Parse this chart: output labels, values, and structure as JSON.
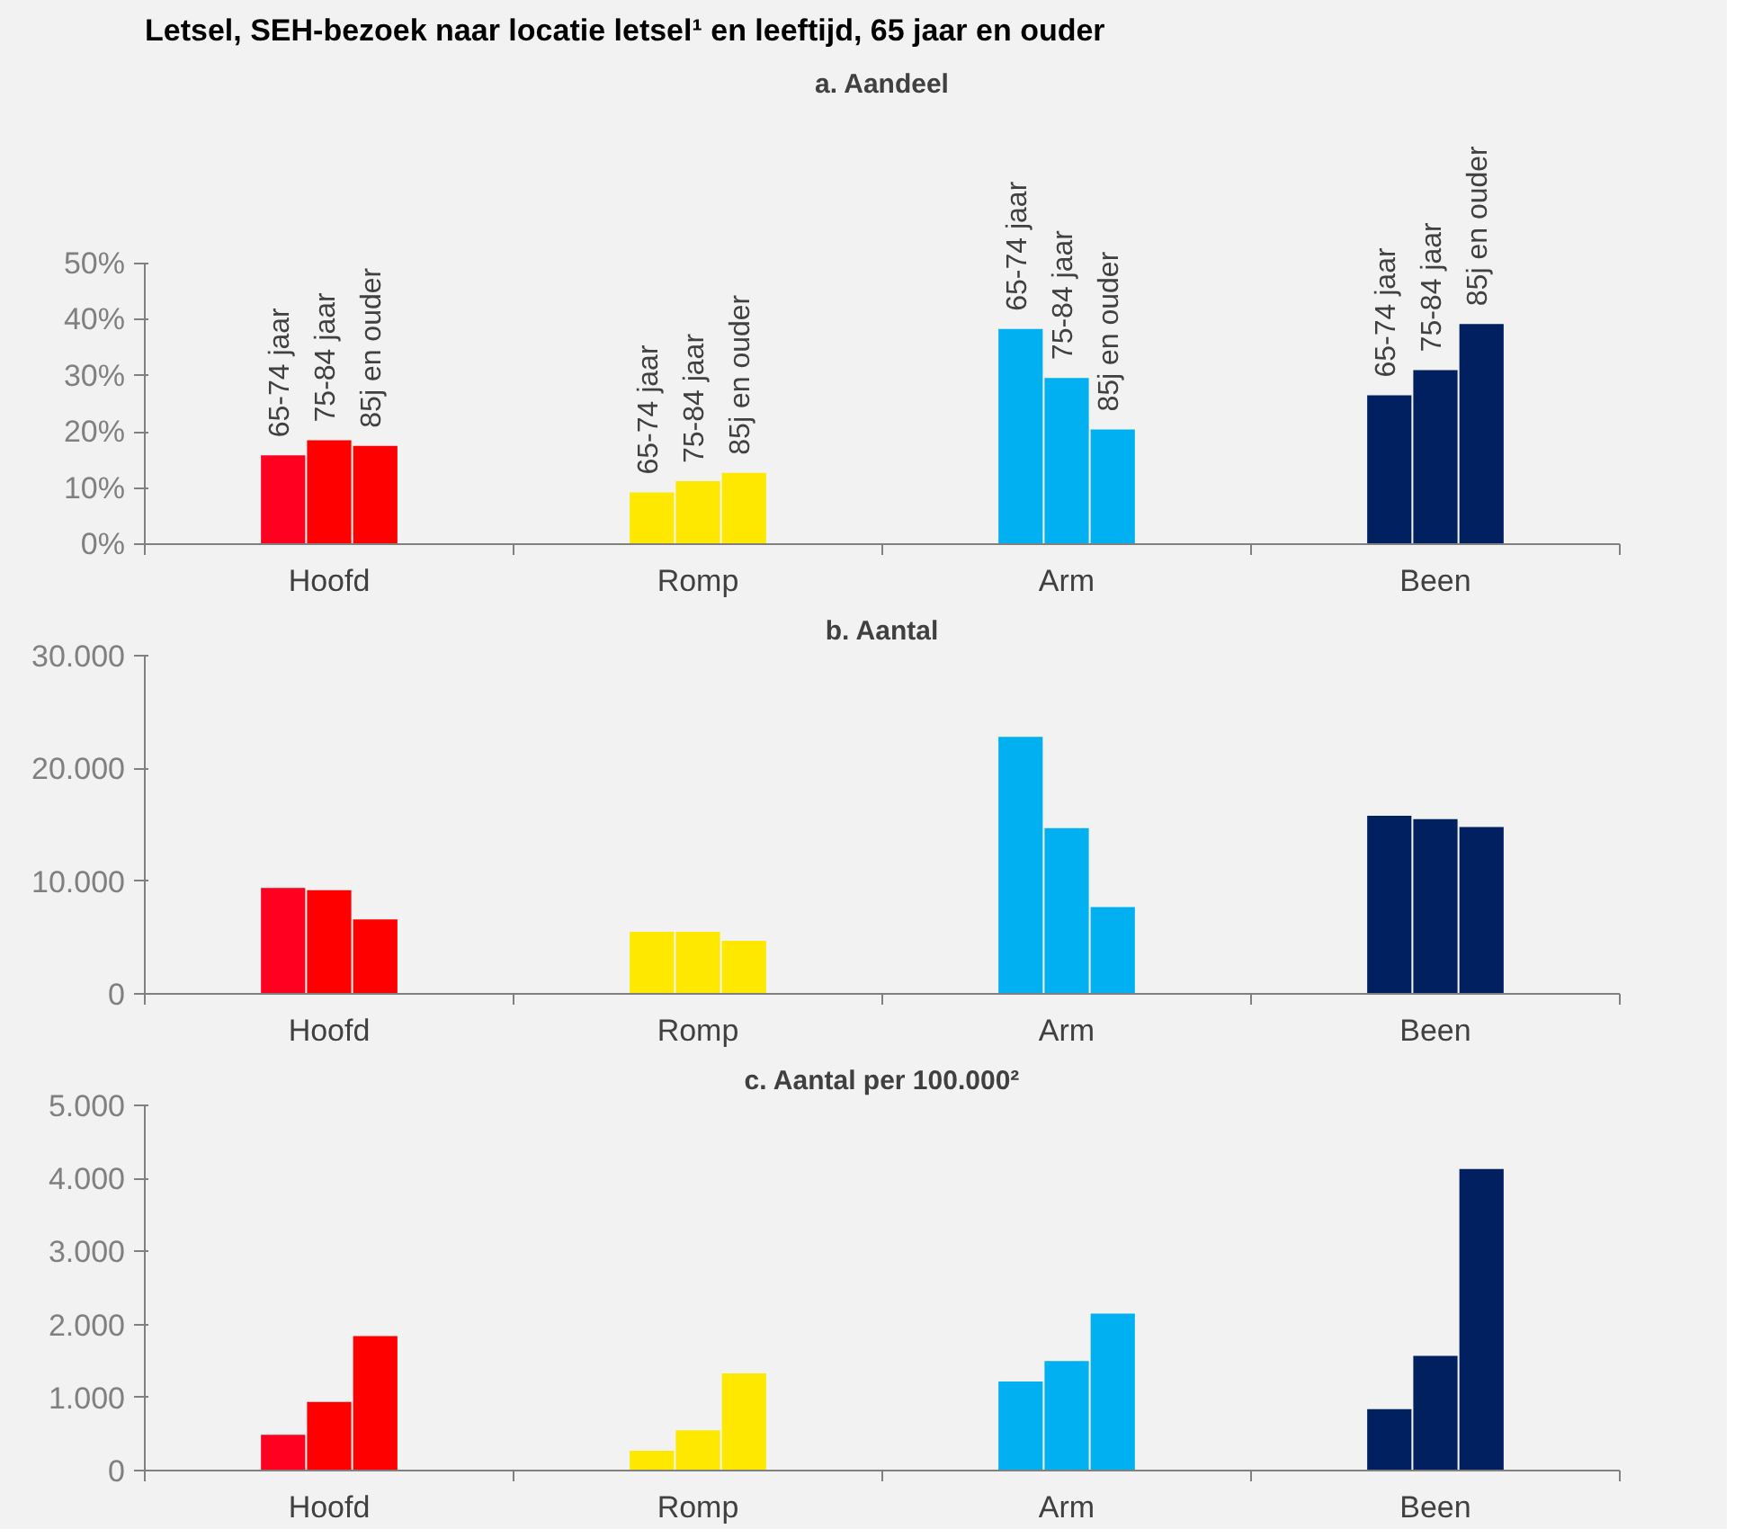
{
  "chart_data": [
    {
      "type": "bar",
      "title": "a. Aandeel",
      "annotations": [
        "Letsel, SEH-bezoek naar locatie letsel¹ en leeftijd, 65 jaar en ouder"
      ],
      "categories": [
        "Hoofd",
        "Romp",
        "Arm",
        "Been"
      ],
      "ylim": [
        0,
        50
      ],
      "yticks": [
        {
          "value": 0,
          "label": "0%"
        },
        {
          "value": 10,
          "label": "10%"
        },
        {
          "value": 20,
          "label": "20%"
        },
        {
          "value": 30,
          "label": "30%"
        },
        {
          "value": 40,
          "label": "40%"
        },
        {
          "value": 50,
          "label": "50%"
        }
      ],
      "series": [
        {
          "name": "65-74 jaar",
          "colors": [
            "#ff0020",
            "#ffe800",
            "#00b0f0",
            "#002060"
          ],
          "values": [
            15.8,
            9.2,
            38.3,
            26.5
          ]
        },
        {
          "name": "75-84 jaar",
          "colors": [
            "#ff0000",
            "#ffe800",
            "#00b0f0",
            "#002060"
          ],
          "values": [
            18.5,
            11.2,
            29.6,
            31.0
          ]
        },
        {
          "name": "85j en ouder",
          "colors": [
            "#ff0000",
            "#ffe800",
            "#00b0f0",
            "#002060"
          ],
          "values": [
            17.5,
            12.7,
            20.4,
            39.2
          ]
        }
      ]
    },
    {
      "type": "bar",
      "title": "b. Aantal",
      "categories": [
        "Hoofd",
        "Romp",
        "Arm",
        "Been"
      ],
      "ylim": [
        0,
        30000
      ],
      "yticks": [
        {
          "value": 0,
          "label": "0"
        },
        {
          "value": 10000,
          "label": "10.000"
        },
        {
          "value": 20000,
          "label": "20.000"
        },
        {
          "value": 30000,
          "label": "30.000"
        }
      ],
      "series": [
        {
          "colors": [
            "#ff0020",
            "#ffe800",
            "#00b0f0",
            "#002060"
          ],
          "values": [
            9400,
            5500,
            22800,
            15800
          ]
        },
        {
          "colors": [
            "#ff0000",
            "#ffe800",
            "#00b0f0",
            "#002060"
          ],
          "values": [
            9200,
            5500,
            14700,
            15500
          ]
        },
        {
          "colors": [
            "#ff0000",
            "#ffe800",
            "#00b0f0",
            "#002060"
          ],
          "values": [
            6600,
            4700,
            7700,
            14800
          ]
        }
      ]
    },
    {
      "type": "bar",
      "title": "c. Aantal per 100.000²",
      "categories": [
        "Hoofd",
        "Romp",
        "Arm",
        "Been"
      ],
      "ylim": [
        0,
        5000
      ],
      "yticks": [
        {
          "value": 0,
          "label": "0"
        },
        {
          "value": 1000,
          "label": "1.000"
        },
        {
          "value": 2000,
          "label": "2.000"
        },
        {
          "value": 3000,
          "label": "3.000"
        },
        {
          "value": 4000,
          "label": "4.000"
        },
        {
          "value": 5000,
          "label": "5.000"
        }
      ],
      "series": [
        {
          "colors": [
            "#ff0020",
            "#ffe800",
            "#00b0f0",
            "#002060"
          ],
          "values": [
            490,
            270,
            1220,
            840
          ]
        },
        {
          "colors": [
            "#ff0000",
            "#ffe800",
            "#00b0f0",
            "#002060"
          ],
          "values": [
            940,
            550,
            1500,
            1570
          ]
        },
        {
          "colors": [
            "#ff0000",
            "#ffe800",
            "#00b0f0",
            "#002060"
          ],
          "values": [
            1840,
            1330,
            2150,
            4130
          ]
        }
      ]
    }
  ]
}
